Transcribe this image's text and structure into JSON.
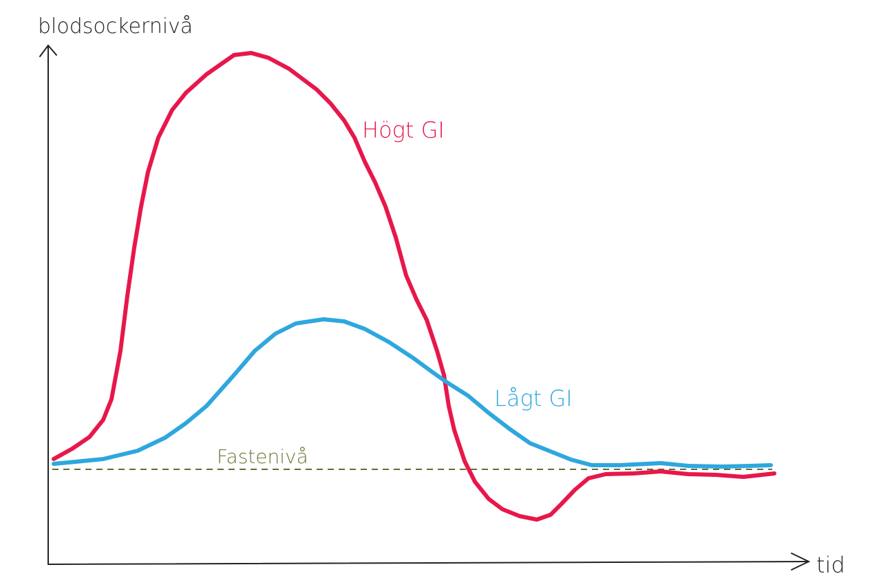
{
  "axes": {
    "y_label": "blodsockernivå",
    "x_label": "tid"
  },
  "curves": {
    "high": "Högt GI",
    "low": "Lågt GI",
    "fasting": "Fastenivå"
  }
}
